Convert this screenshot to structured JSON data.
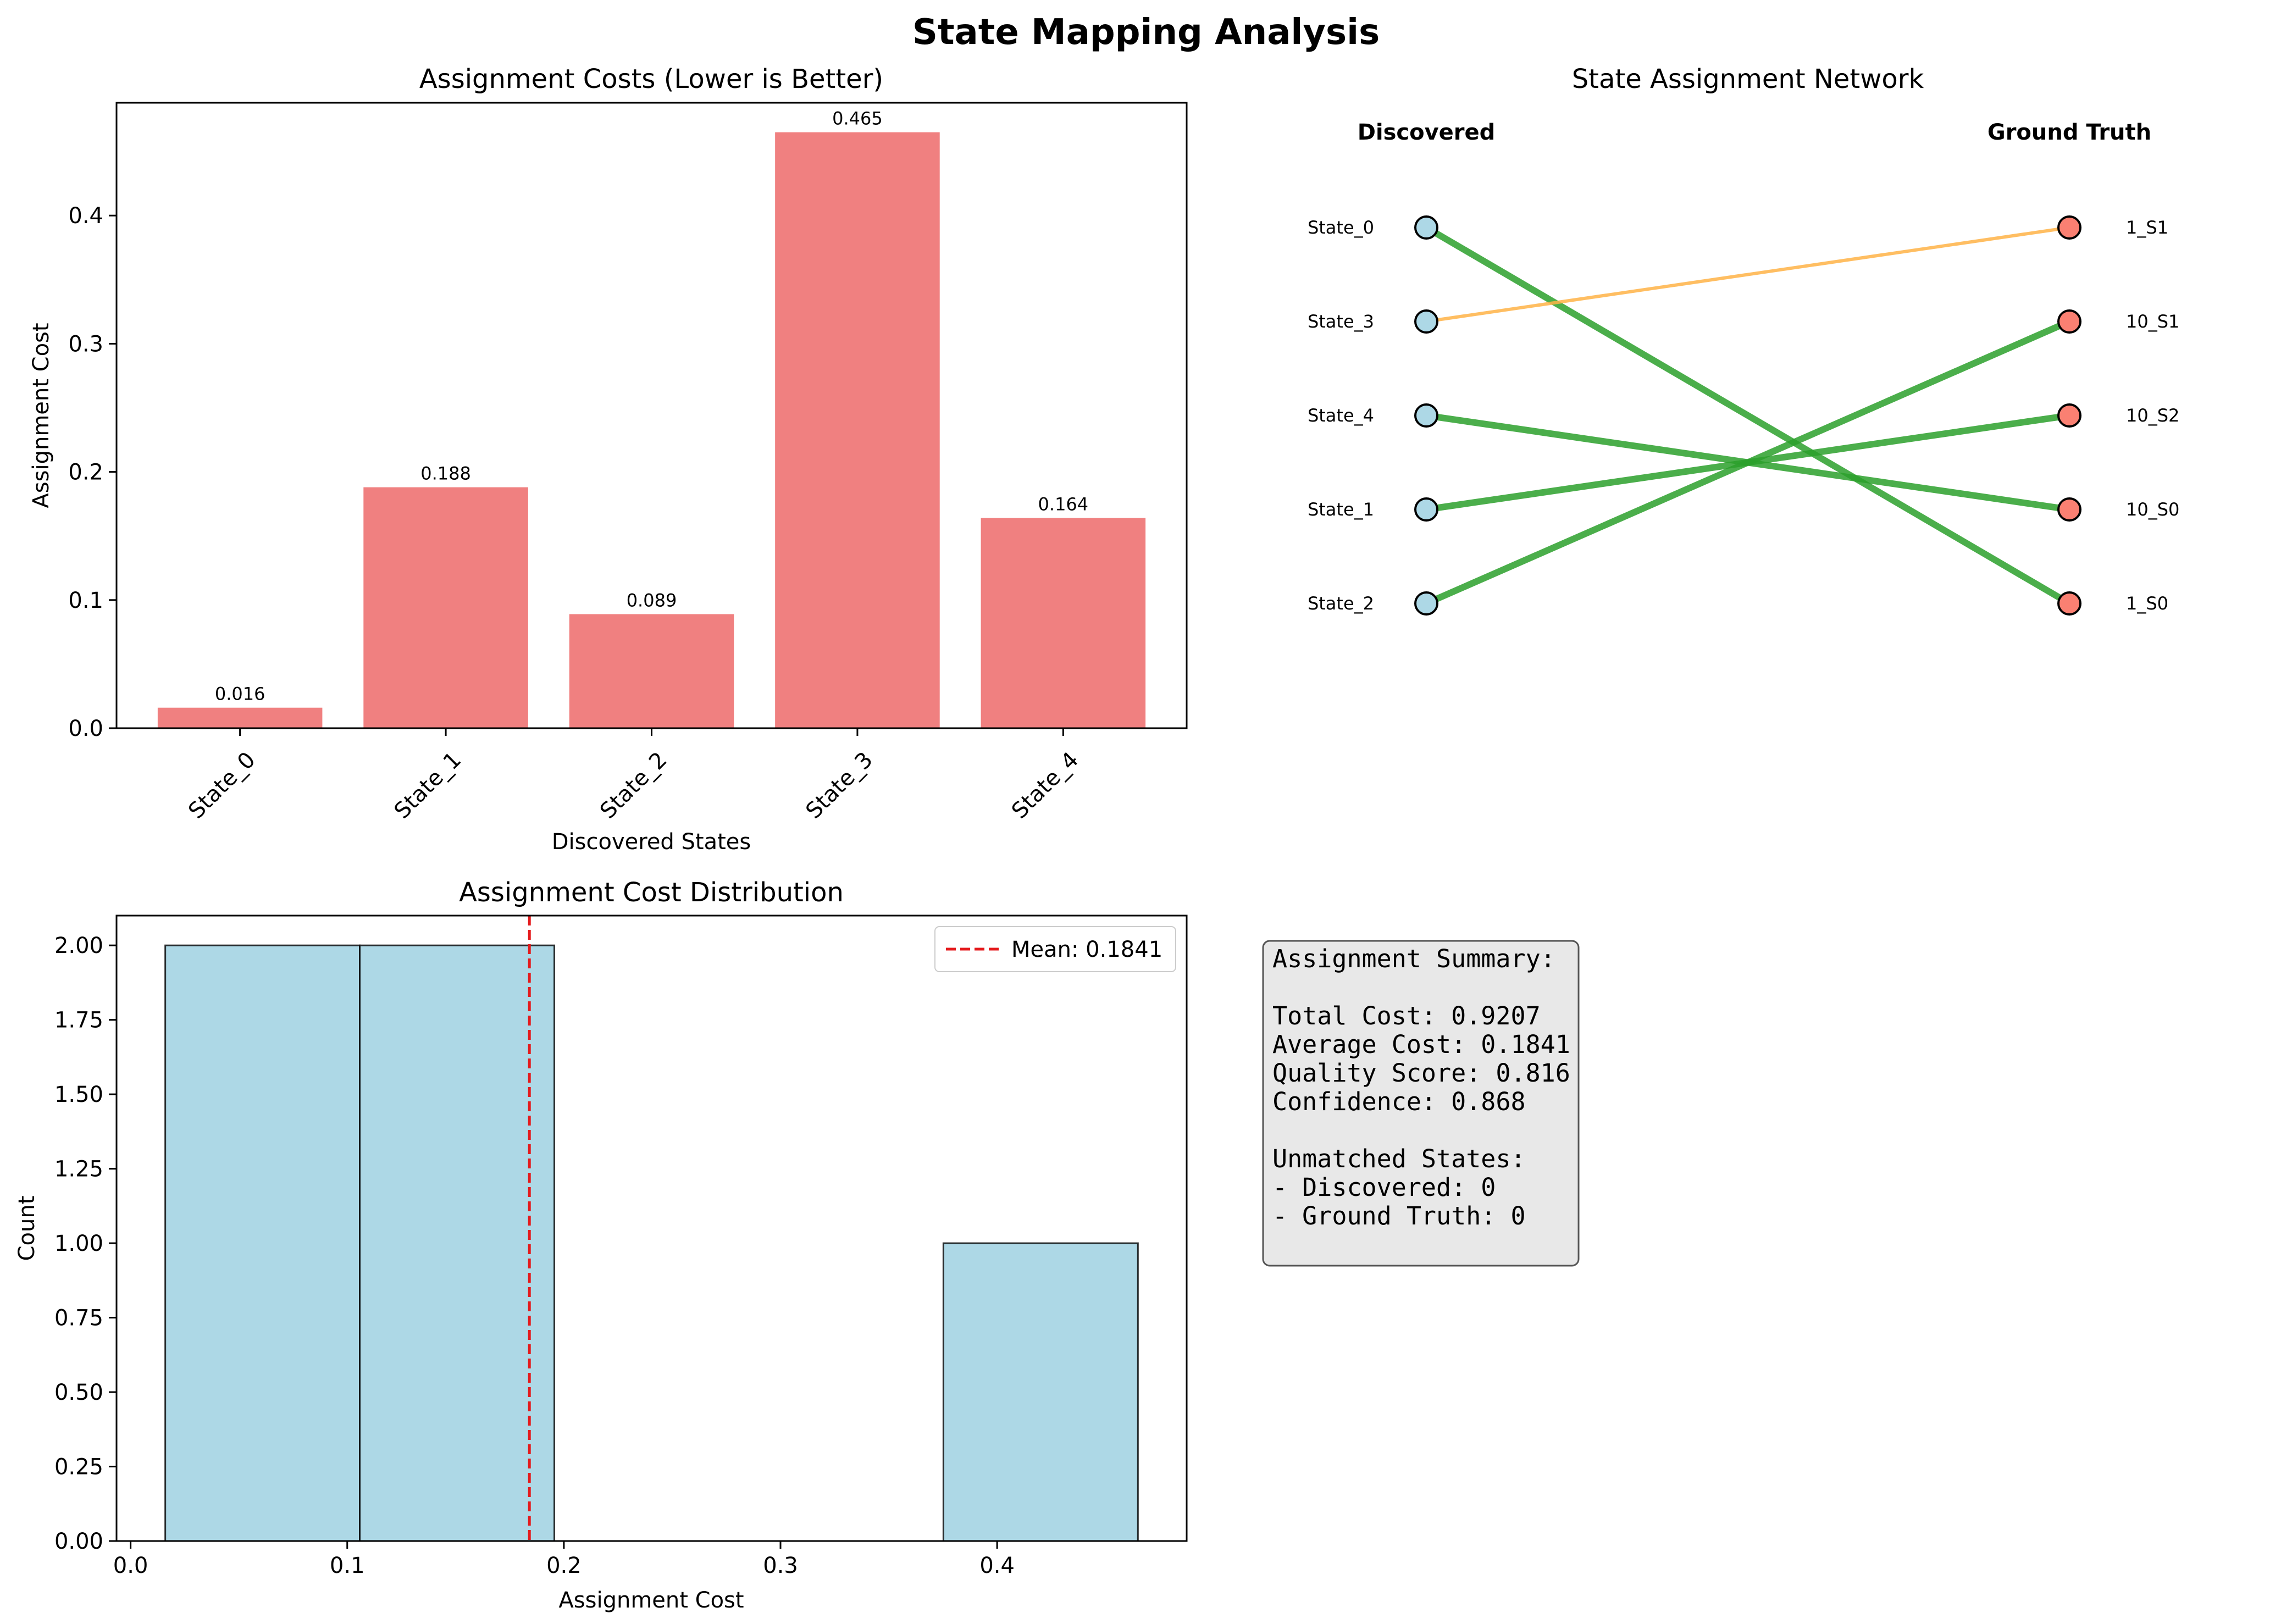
{
  "suptitle": "State Mapping Analysis",
  "colors": {
    "bar": "#f08080",
    "hist": "#add8e6",
    "mean_line": "#e41a1c",
    "good_link": "#2ca02c",
    "weak_link": "#ffb347",
    "discovered_node": "#add8e6",
    "truth_node": "#fa8072"
  },
  "chart_data": [
    {
      "type": "bar",
      "title": "Assignment Costs (Lower is Better)",
      "xlabel": "Discovered States",
      "ylabel": "Assignment Cost",
      "categories": [
        "State_0",
        "State_1",
        "State_2",
        "State_3",
        "State_4"
      ],
      "values": [
        0.016,
        0.188,
        0.089,
        0.465,
        0.164
      ],
      "value_labels": [
        "0.016",
        "0.188",
        "0.089",
        "0.465",
        "0.164"
      ],
      "ylim": [
        0,
        0.488
      ],
      "yticks": [
        0.0,
        0.1,
        0.2,
        0.3,
        0.4
      ],
      "ytick_labels": [
        "0.0",
        "0.1",
        "0.2",
        "0.3",
        "0.4"
      ],
      "grid": false
    },
    {
      "type": "network",
      "title": "State Assignment Network",
      "left_header": "Discovered",
      "right_header": "Ground Truth",
      "left_nodes": [
        "State_0",
        "State_3",
        "State_4",
        "State_1",
        "State_2"
      ],
      "right_nodes": [
        "1_S1",
        "10_S1",
        "10_S2",
        "10_S0",
        "1_S0"
      ],
      "links": [
        {
          "from": "State_0",
          "to": "1_S0",
          "quality": "good"
        },
        {
          "from": "State_3",
          "to": "1_S1",
          "quality": "weak"
        },
        {
          "from": "State_4",
          "to": "10_S0",
          "quality": "good"
        },
        {
          "from": "State_1",
          "to": "10_S2",
          "quality": "good"
        },
        {
          "from": "State_2",
          "to": "10_S1",
          "quality": "good"
        }
      ]
    },
    {
      "type": "histogram",
      "title": "Assignment Cost Distribution",
      "xlabel": "Assignment Cost",
      "ylabel": "Count",
      "bins": [
        {
          "start": 0.016,
          "end": 0.1058,
          "count": 2
        },
        {
          "start": 0.1058,
          "end": 0.1956,
          "count": 2
        },
        {
          "start": 0.1956,
          "end": 0.2854,
          "count": 0
        },
        {
          "start": 0.2854,
          "end": 0.3752,
          "count": 0
        },
        {
          "start": 0.3752,
          "end": 0.465,
          "count": 1
        }
      ],
      "mean": 0.1841,
      "legend_label": "Mean: 0.1841",
      "legend_position": "upper right",
      "xlim": [
        -0.0065,
        0.4875
      ],
      "ylim": [
        0,
        2.1
      ],
      "xticks": [
        0.0,
        0.1,
        0.2,
        0.3,
        0.4
      ],
      "xtick_labels": [
        "0.0",
        "0.1",
        "0.2",
        "0.3",
        "0.4"
      ],
      "yticks": [
        0.0,
        0.25,
        0.5,
        0.75,
        1.0,
        1.25,
        1.5,
        1.75,
        2.0
      ],
      "ytick_labels": [
        "0.00",
        "0.25",
        "0.50",
        "0.75",
        "1.00",
        "1.25",
        "1.50",
        "1.75",
        "2.00"
      ],
      "grid": false
    }
  ],
  "summary": {
    "lines": [
      "Assignment Summary:",
      "",
      "Total Cost: 0.9207",
      "Average Cost: 0.1841",
      "Quality Score: 0.816",
      "Confidence: 0.868",
      "",
      "Unmatched States:",
      "- Discovered: 0",
      "- Ground Truth: 0"
    ]
  }
}
